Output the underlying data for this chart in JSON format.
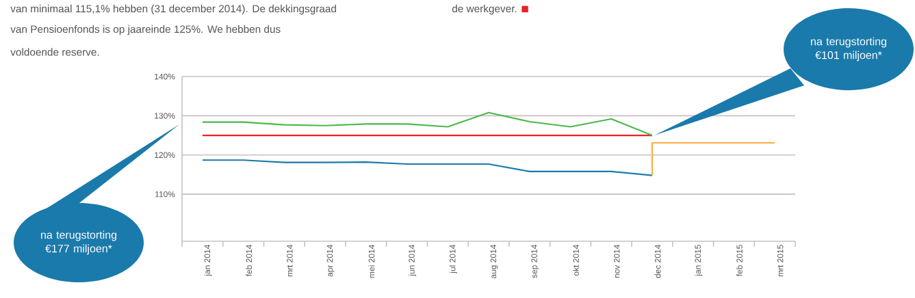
{
  "chart_data": {
    "type": "line",
    "categories": [
      "jan 2014",
      "feb 2014",
      "mrt 2014",
      "apr 2014",
      "mei 2014",
      "jun 2014",
      "jul 2014",
      "aug 2014",
      "sep 2014",
      "okt 2014",
      "nov 2014",
      "dec 2014",
      "jan 2015",
      "feb 2015",
      "mrt 2015"
    ],
    "series": [
      {
        "color": "#1a7aab",
        "values": [
          118.7,
          118.7,
          118.1,
          118.1,
          118.2,
          117.7,
          117.7,
          117.7,
          115.8,
          115.8,
          115.8,
          114.8,
          null,
          null,
          null
        ]
      },
      {
        "color": "#e8202a",
        "values": [
          125,
          125,
          125,
          125,
          125,
          125,
          125,
          125,
          125,
          125,
          125,
          125,
          null,
          null,
          null
        ]
      },
      {
        "color": "#4db848",
        "values": [
          128.4,
          128.4,
          127.7,
          127.5,
          127.9,
          127.9,
          127.2,
          130.8,
          128.5,
          127.2,
          129.2,
          125,
          null,
          null,
          null
        ]
      },
      {
        "color": "#f9ae40",
        "type": "step",
        "values": [
          null,
          null,
          null,
          null,
          null,
          null,
          null,
          null,
          null,
          null,
          null,
          114.8,
          123.1,
          123.1,
          123.1
        ]
      }
    ],
    "ylim": [
      98,
      140
    ],
    "yticks": [
      {
        "value": 110,
        "label": "110%"
      },
      {
        "value": 120,
        "label": "120%"
      },
      {
        "value": 130,
        "label": "130%"
      },
      {
        "value": 140,
        "label": "140%"
      }
    ],
    "grid": "y",
    "annotations": [
      "van minimaal 115,1% hebben (31 december 2014). De dekkingsgraad",
      "van Pensioenfonds is op jaareinde 125%. We hebben dus",
      "voldoende reserve.",
      "de werkgever.",
      "na terugstorting €177 miljoen*",
      "na terugstorting €101 miljoen*"
    ]
  }
}
